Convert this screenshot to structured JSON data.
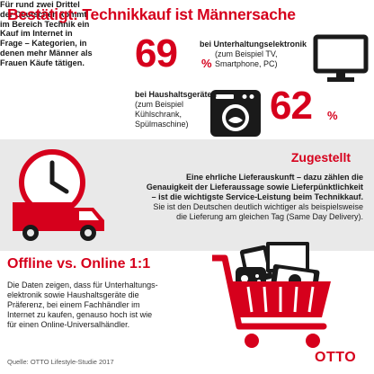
{
  "section1": {
    "heading": "Bestätigt: Technikkauf ist Männersache",
    "intro_lines": [
      "Für rund zwei Drittel",
      "der Deutschen kommt",
      "im Bereich Technik ein",
      "Kauf im Internet in",
      "Frage – Kategorien, in",
      "denen mehr Männer als",
      "Frauen Käufe tätigen."
    ],
    "stat1": {
      "value": "69",
      "unit": "%",
      "title": "bei Unterhaltungselektronik",
      "sub_lines": [
        "(zum Beispiel TV,",
        "Smartphone, PC)"
      ],
      "icon": "monitor-icon"
    },
    "stat2": {
      "value": "62",
      "unit": "%",
      "title": "bei Haushaltsgeräten",
      "sub_lines": [
        "(zum Beispiel",
        "Kühlschrank,",
        "Spülmaschine)"
      ],
      "icon": "washing-machine-icon"
    }
  },
  "section2": {
    "heading": "Zugestellt",
    "lines": [
      {
        "text": "Eine ehrliche Lieferauskunft – dazu zählen die",
        "bold": true
      },
      {
        "text": "Genauigkeit der Lieferaussage sowie Lieferpünktlichkeit",
        "bold": true
      },
      {
        "text": "– ist die wichtigste Service-Leistung beim Technikkauf.",
        "bold": true
      },
      {
        "text": "Sie ist den Deutschen deutlich wichtiger als beispielsweise",
        "bold": false
      },
      {
        "text": "die Lieferung am gleichen Tag (Same Day Delivery).",
        "bold": false
      }
    ],
    "icon": "delivery-truck-clock-icon"
  },
  "section3": {
    "heading": "Offline vs. Online 1:1",
    "lines": [
      "Die Daten zeigen, dass für Unterhaltungs-",
      "elektronik sowie Haushaltsgeräte die",
      "Präferenz, bei einem Fachhändler im",
      "Internet zu kaufen, genauso hoch ist wie",
      "für einen Online-Universalhändler."
    ],
    "source": "Quelle: OTTO Lifestyle-Studie 2017",
    "logo": "OTTO",
    "icon": "shopping-cart-devices-icon"
  },
  "colors": {
    "accent": "#d6001c",
    "band": "#e9e9e9",
    "text": "#1a1a1a"
  }
}
